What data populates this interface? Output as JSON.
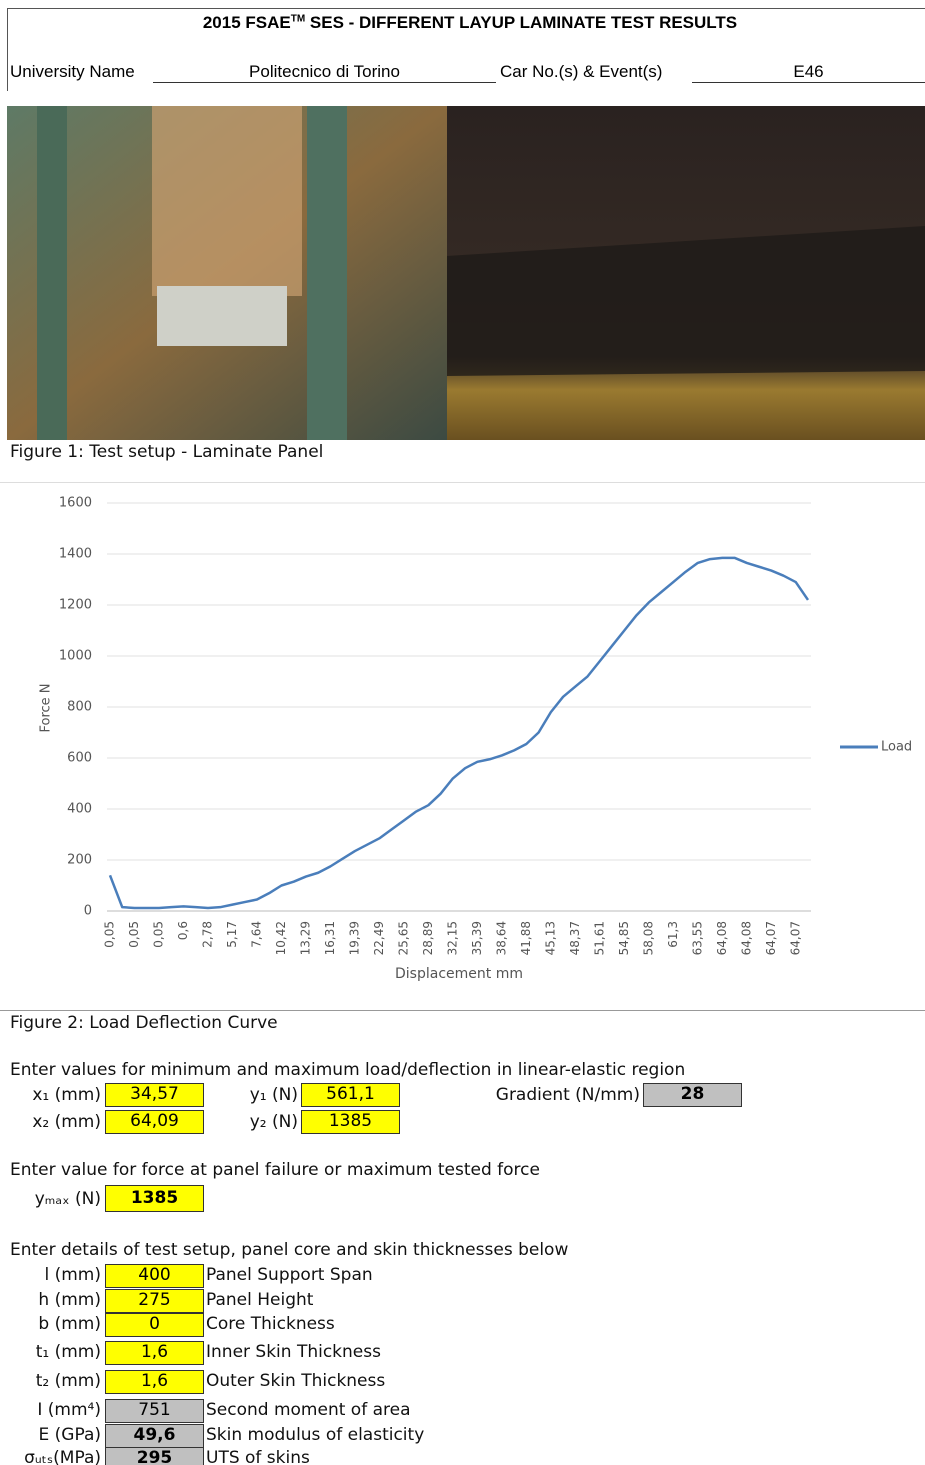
{
  "header": {
    "title_parts": [
      "2015 FSAE",
      "TM",
      " SES - DIFFERENT LAYUP LAMINATE TEST RESULTS"
    ],
    "university_label": "University Name",
    "university": "Politecnico di Torino",
    "car_label": "Car No.(s) & Event(s)",
    "car": "E46"
  },
  "figure1_caption": "Figure 1: Test setup - Laminate Panel",
  "chart_data": {
    "type": "line",
    "ylabel": "Force N",
    "xlabel": "Displacement mm",
    "categories": [
      "0,05",
      null,
      "0,05",
      null,
      "0,05",
      null,
      "0,6",
      null,
      "2,78",
      null,
      "5,17",
      null,
      "7,64",
      null,
      "10,42",
      null,
      "13,29",
      null,
      "16,31",
      null,
      "19,39",
      null,
      "22,49",
      null,
      "25,65",
      null,
      "28,89",
      null,
      "32,15",
      null,
      "35,39",
      null,
      "38,64",
      null,
      "41,88",
      null,
      "45,13",
      null,
      "48,37",
      null,
      "51,61",
      null,
      "54,85",
      null,
      "58,08",
      null,
      "61,3",
      null,
      "63,55",
      null,
      "64,08",
      null,
      "64,08",
      null,
      "64,07",
      null,
      "64,07",
      null
    ],
    "series": [
      {
        "name": "Load",
        "color": "#4a7ebb",
        "values": [
          140,
          15,
          12,
          12,
          12,
          15,
          18,
          15,
          12,
          15,
          25,
          35,
          45,
          70,
          100,
          115,
          135,
          150,
          175,
          205,
          235,
          260,
          285,
          320,
          355,
          390,
          415,
          460,
          520,
          560,
          585,
          595,
          610,
          630,
          655,
          700,
          780,
          840,
          880,
          920,
          980,
          1040,
          1100,
          1160,
          1210,
          1250,
          1290,
          1330,
          1365,
          1380,
          1385,
          1385,
          1365,
          1350,
          1335,
          1315,
          1290,
          1220
        ]
      }
    ],
    "ylim": [
      0,
      1600
    ],
    "yticks": [
      0,
      200,
      400,
      600,
      800,
      1000,
      1200,
      1400,
      1600
    ],
    "grid": true,
    "legend": "right"
  },
  "figure2_caption": "Figure 2: Load Deflection Curve",
  "linear_section": {
    "prompt": "Enter values for minimum and maximum load/deflection in linear-elastic region",
    "x1_label": "x₁ (mm)",
    "x1": "34,57",
    "y1_label": "y₁ (N)",
    "y1": "561,1",
    "x2_label": "x₂ (mm)",
    "x2": "64,09",
    "y2_label": "y₂ (N)",
    "y2": "1385",
    "gradient_label": "Gradient (N/mm)",
    "gradient": "28"
  },
  "failure_section": {
    "prompt": "Enter value for force at panel failure or maximum tested force",
    "ymax_label": "yₘₐₓ (N)",
    "ymax": "1385"
  },
  "setup_section": {
    "prompt": "Enter details of test setup, panel core and skin thicknesses below",
    "rows": [
      [
        "l (mm)",
        "400",
        "Panel Support Span"
      ],
      [
        "h (mm)",
        "275",
        "Panel Height"
      ],
      [
        "b (mm)",
        "0",
        "Core Thickness"
      ],
      [
        "t₁ (mm)",
        "1,6",
        "Inner Skin Thickness"
      ],
      [
        "t₂ (mm)",
        "1,6",
        "Outer Skin Thickness"
      ],
      [
        "I (mm⁴)",
        "751",
        "Second moment of area"
      ],
      [
        "E (GPa)",
        "49,6",
        "Skin modulus of elasticity"
      ],
      [
        "σᵤₜₛ(MPa)",
        "295",
        "UTS of skins"
      ]
    ]
  }
}
